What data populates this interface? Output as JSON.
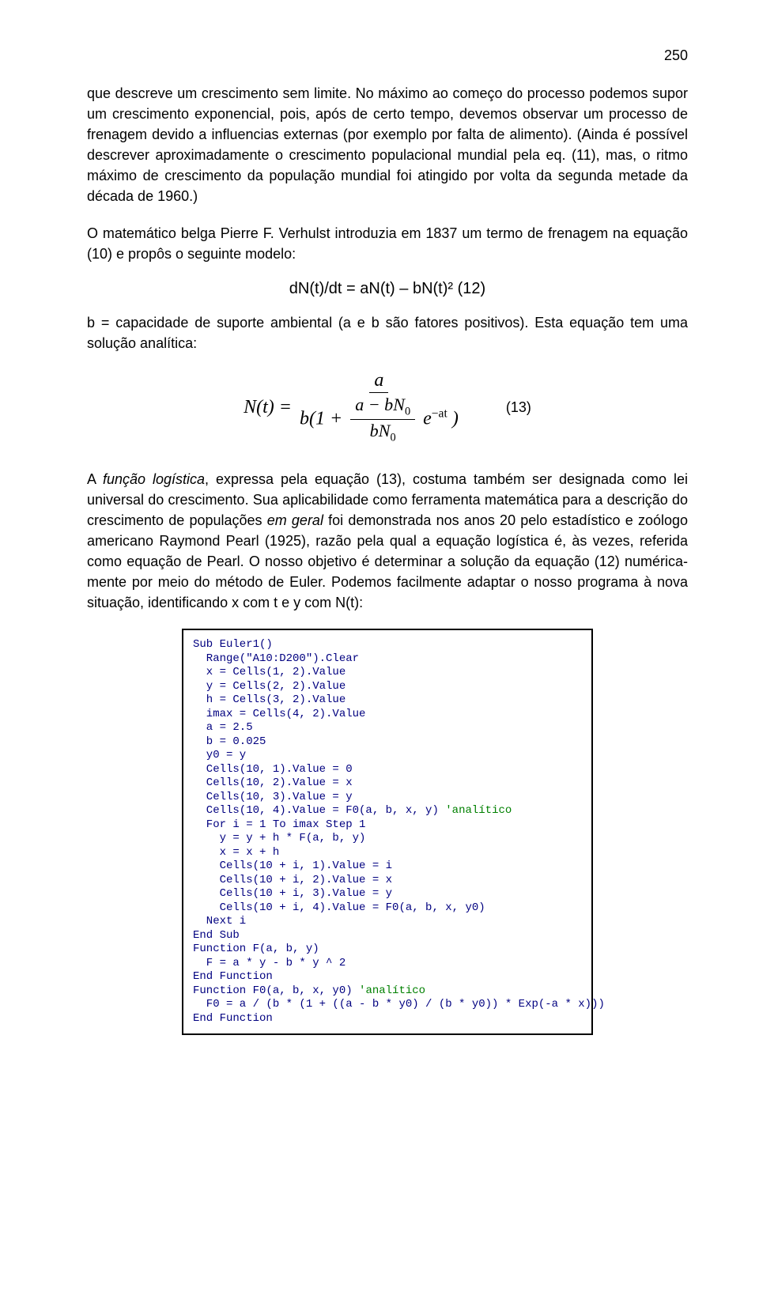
{
  "page_number": "250",
  "para1": "que descreve um crescimento sem limite. No máximo ao começo do processo podemos supor um crescimento exponencial, pois, após de certo tempo, devemos observar um processo de frenagem devido a influencias externas (por exemplo por falta de alimento). (Ainda é possível descrever aproximadamente o crescimento populacional mundial pela eq. (11), mas, o ritmo máximo de crescimento da população mundial foi atingido por volta da segunda metade da década de 1960.)",
  "para2": "O matemático belga Pierre F. Verhulst introduzia em 1837 um termo de frenagem na equação (10) e propôs o seguinte modelo:",
  "eq12": "dN(t)/dt = aN(t) – bN(t)²    (12)",
  "para3": "b = capacidade de suporte ambiental (a e b são fatores positivos). Esta equação tem uma solução analítica:",
  "eq13": {
    "lhs": "N(t) =",
    "num_top": "a",
    "den_prefix": "b(1 +",
    "inner_num": "a − bN",
    "inner_num_sub": "0",
    "inner_den": "bN",
    "inner_den_sub": "0",
    "exp_base": "e",
    "exp_sup": "−at",
    "den_suffix": ")",
    "eqnum": "(13)"
  },
  "para4_seg1": "A ",
  "para4_ital1": "função logística",
  "para4_seg2": ", expressa pela equação (13), costuma também ser designada como lei universal do crescimento. Sua aplicabilidade como ferramenta matemática para a descrição do crescimento de populações ",
  "para4_ital2": "em geral",
  "para4_seg3": " foi demonstrada nos anos 20 pelo estadístico e zoólogo americano Raymond Pearl (1925), razão pela qual a equação logística é, às vezes, referida como equação de Pearl. O nosso objetivo é determinar a solução da equação (12) numérica-mente por meio do método de Euler. Podemos facilmente adaptar o nosso programa à nova situação, identificando x com t e y com N(t):",
  "code": {
    "lines": [
      {
        "t": "Sub Euler1()"
      },
      {
        "t": "  Range(\"A10:D200\").Clear"
      },
      {
        "t": "  x = Cells(1, 2).Value"
      },
      {
        "t": "  y = Cells(2, 2).Value"
      },
      {
        "t": "  h = Cells(3, 2).Value"
      },
      {
        "t": "  imax = Cells(4, 2).Value"
      },
      {
        "t": "  a = 2.5"
      },
      {
        "t": "  b = 0.025"
      },
      {
        "t": "  y0 = y"
      },
      {
        "t": "  Cells(10, 1).Value = 0"
      },
      {
        "t": "  Cells(10, 2).Value = x"
      },
      {
        "t": "  Cells(10, 3).Value = y"
      },
      {
        "t": "  Cells(10, 4).Value = F0(a, b, x, y) ",
        "c": "'analítico"
      },
      {
        "t": "  For i = 1 To imax Step 1"
      },
      {
        "t": "    y = y + h * F(a, b, y)"
      },
      {
        "t": "    x = x + h"
      },
      {
        "t": "    Cells(10 + i, 1).Value = i"
      },
      {
        "t": "    Cells(10 + i, 2).Value = x"
      },
      {
        "t": "    Cells(10 + i, 3).Value = y"
      },
      {
        "t": "    Cells(10 + i, 4).Value = F0(a, b, x, y0)"
      },
      {
        "t": "  Next i"
      },
      {
        "t": "End Sub"
      },
      {
        "t": "Function F(a, b, y)"
      },
      {
        "t": "  F = a * y - b * y ^ 2"
      },
      {
        "t": "End Function"
      },
      {
        "t": "Function F0(a, b, x, y0) ",
        "c": "'analítico"
      },
      {
        "t": "  F0 = a / (b * (1 + ((a - b * y0) / (b * y0)) * Exp(-a * x)))"
      },
      {
        "t": "End Function"
      }
    ]
  }
}
